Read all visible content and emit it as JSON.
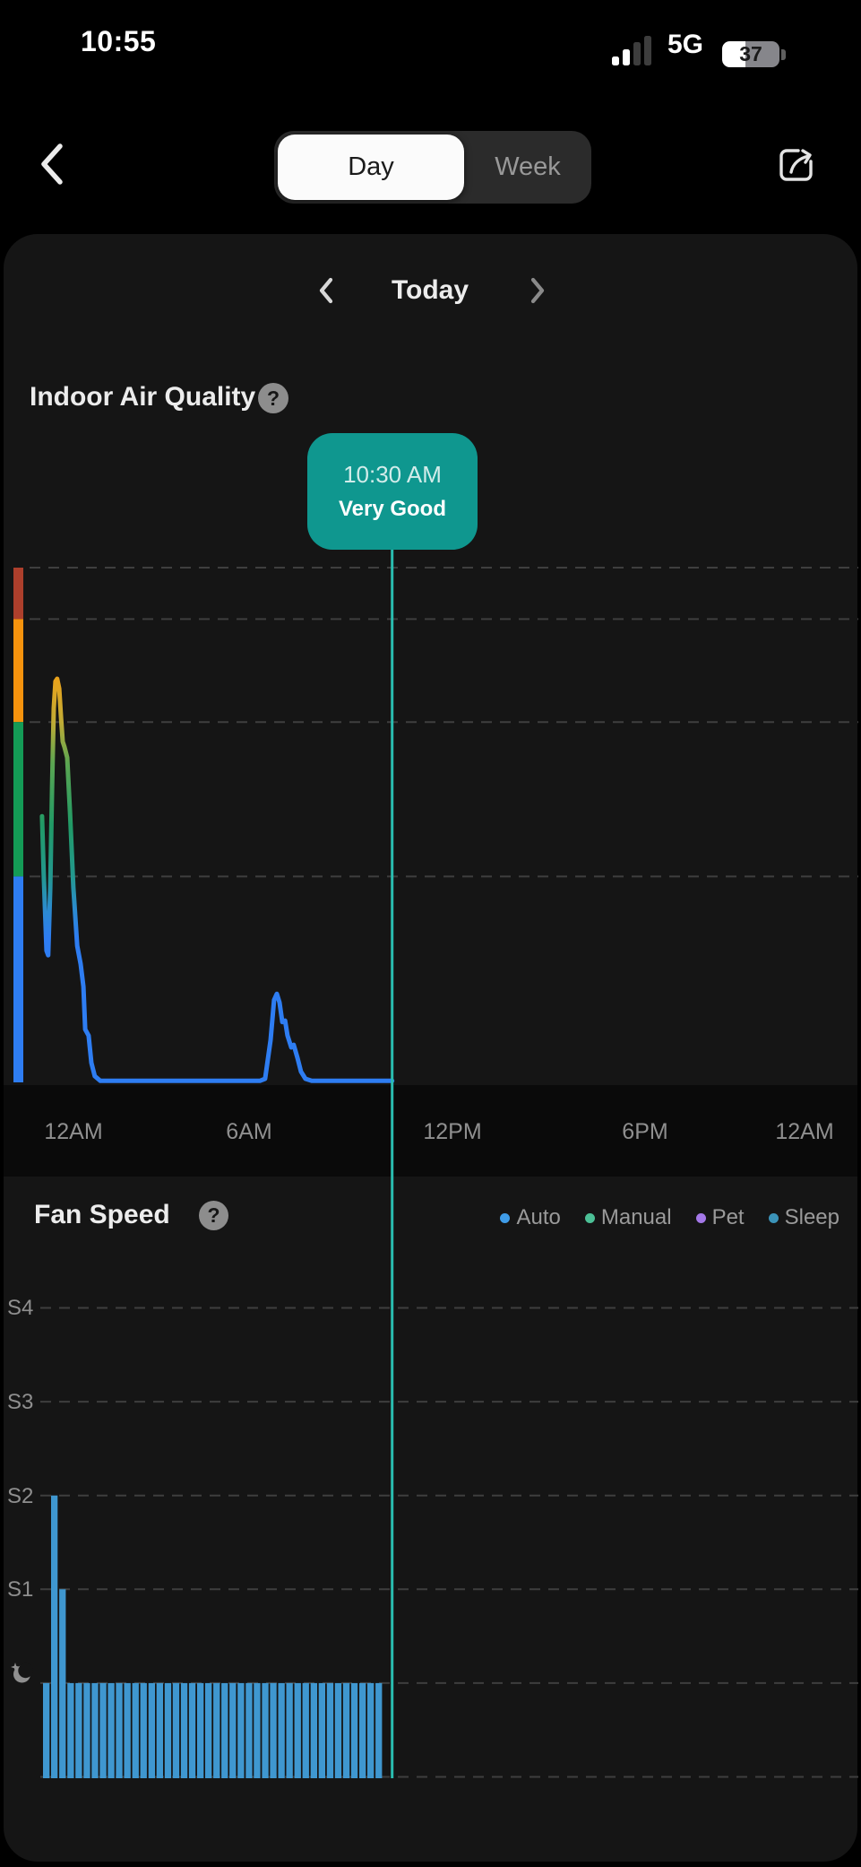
{
  "status_bar": {
    "time": "10:55",
    "network": "5G",
    "battery_percent": "37",
    "signal_bars_filled": 2,
    "signal_bars_total": 4
  },
  "nav": {
    "segments": [
      {
        "label": "Day",
        "selected": true
      },
      {
        "label": "Week",
        "selected": false
      }
    ]
  },
  "date_nav": {
    "label": "Today"
  },
  "icons": {
    "question": "?"
  },
  "air_quality": {
    "title": "Indoor Air Quality"
  },
  "fan_speed": {
    "title": "Fan Speed",
    "legend": [
      {
        "label": "Auto",
        "color": "#3f9ce8"
      },
      {
        "label": "Manual",
        "color": "#4cc096"
      },
      {
        "label": "Pet",
        "color": "#a478e8"
      },
      {
        "label": "Sleep",
        "color": "#3b93b8"
      }
    ]
  },
  "colors": {
    "cursor": "#2abdb0",
    "fan_bar": "#3f97d0",
    "tooltip_bg": "#0f978f",
    "grid": "#3e3e3e"
  },
  "chart_data": [
    {
      "type": "line",
      "title": "Indoor Air Quality",
      "x_labels": [
        "12AM",
        "6AM",
        "12PM",
        "6PM",
        "12AM"
      ],
      "x_hours_range": [
        0,
        24
      ],
      "grid": true,
      "cursor": {
        "hour": 10.5,
        "time_label": "10:30 AM",
        "value_label": "Very Good"
      },
      "zones": [
        {
          "label": "bad",
          "color": "#ad3f2c",
          "from": 0.9,
          "to": 1.0
        },
        {
          "label": "moderate",
          "color": "#f6930d",
          "from": 0.7,
          "to": 0.9
        },
        {
          "label": "good",
          "color": "#149b56",
          "from": 0.4,
          "to": 0.7
        },
        {
          "label": "very-good",
          "color": "#2e7df2",
          "from": 0.0,
          "to": 0.4
        }
      ],
      "points": [
        [
          0.36,
          0.517
        ],
        [
          0.41,
          0.404
        ],
        [
          0.49,
          0.256
        ],
        [
          0.54,
          0.247
        ],
        [
          0.6,
          0.378
        ],
        [
          0.65,
          0.57
        ],
        [
          0.7,
          0.727
        ],
        [
          0.75,
          0.779
        ],
        [
          0.8,
          0.784
        ],
        [
          0.86,
          0.765
        ],
        [
          0.91,
          0.709
        ],
        [
          0.96,
          0.662
        ],
        [
          1.01,
          0.652
        ],
        [
          1.09,
          0.631
        ],
        [
          1.17,
          0.526
        ],
        [
          1.27,
          0.378
        ],
        [
          1.38,
          0.265
        ],
        [
          1.48,
          0.23
        ],
        [
          1.56,
          0.186
        ],
        [
          1.61,
          0.103
        ],
        [
          1.71,
          0.091
        ],
        [
          1.79,
          0.038
        ],
        [
          1.89,
          0.012
        ],
        [
          2.05,
          0.003
        ],
        [
          6.67,
          0.003
        ],
        [
          6.82,
          0.007
        ],
        [
          6.98,
          0.082
        ],
        [
          7.08,
          0.16
        ],
        [
          7.16,
          0.172
        ],
        [
          7.24,
          0.155
        ],
        [
          7.32,
          0.117
        ],
        [
          7.4,
          0.12
        ],
        [
          7.47,
          0.091
        ],
        [
          7.58,
          0.068
        ],
        [
          7.65,
          0.073
        ],
        [
          7.76,
          0.047
        ],
        [
          7.86,
          0.021
        ],
        [
          7.99,
          0.007
        ],
        [
          8.17,
          0.003
        ],
        [
          10.5,
          0.003
        ]
      ]
    },
    {
      "type": "bar",
      "title": "Fan Speed",
      "y_labels": [
        "S4",
        "S3",
        "S2",
        "S1"
      ],
      "interval_minutes": 15,
      "start_hour": 0,
      "mode": "auto",
      "levels": {
        "sleep": 1,
        "S1": 2,
        "S2": 3,
        "S3": 4,
        "S4": 5
      },
      "values": [
        "sleep",
        "S2",
        "S1",
        "sleep",
        "sleep",
        "sleep",
        "sleep",
        "sleep",
        "sleep",
        "sleep",
        "sleep",
        "sleep",
        "sleep",
        "sleep",
        "sleep",
        "sleep",
        "sleep",
        "sleep",
        "sleep",
        "sleep",
        "sleep",
        "sleep",
        "sleep",
        "sleep",
        "sleep",
        "sleep",
        "sleep",
        "sleep",
        "sleep",
        "sleep",
        "sleep",
        "sleep",
        "sleep",
        "sleep",
        "sleep",
        "sleep",
        "sleep",
        "sleep",
        "sleep",
        "sleep",
        "sleep",
        "sleep"
      ]
    }
  ]
}
